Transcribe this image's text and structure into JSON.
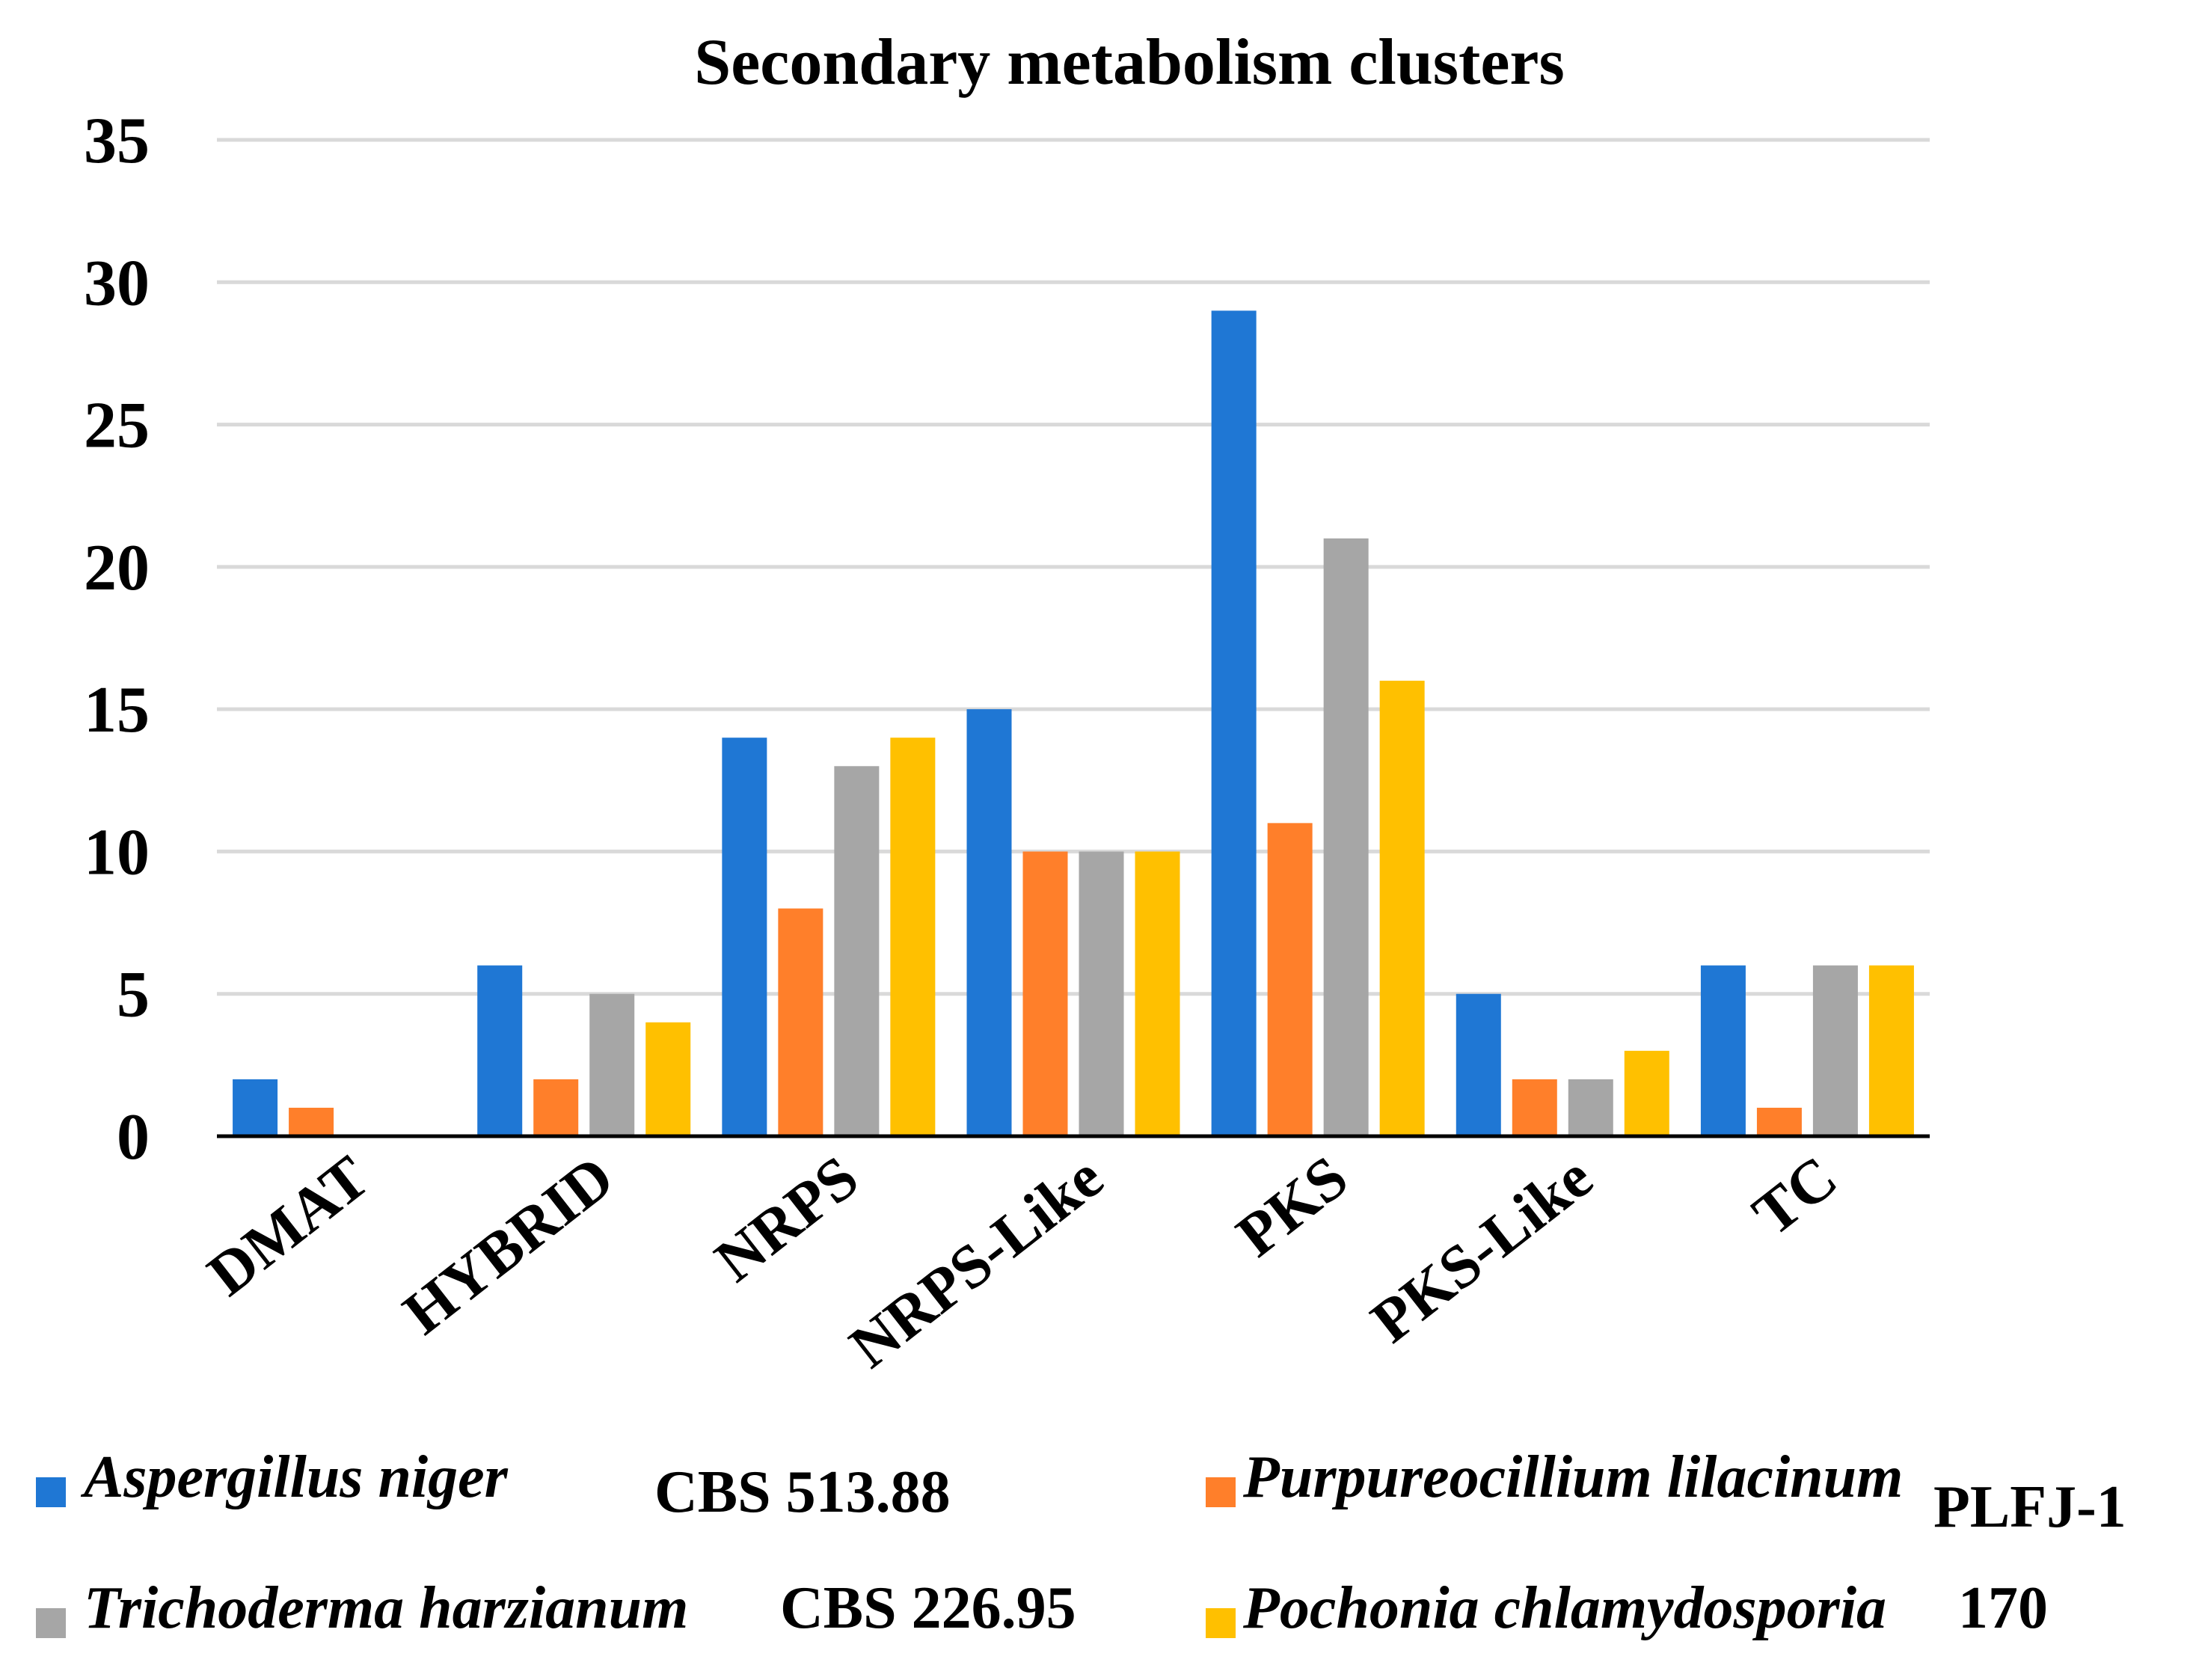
{
  "chart_data": {
    "type": "bar",
    "title": "Secondary metabolism clusters",
    "xlabel": "",
    "ylabel": "",
    "ylim": [
      0,
      35
    ],
    "yticks": [
      0,
      5,
      10,
      15,
      20,
      25,
      30,
      35
    ],
    "grid": true,
    "legend_position": "bottom",
    "categories": [
      "DMAT",
      "HYBRID",
      "NRPS",
      "NRPS-Like",
      "PKS",
      "PKS-Like",
      "TC"
    ],
    "series": [
      {
        "name": "Aspergillus niger",
        "strain": "CBS 513.88",
        "color": "#1f77d4",
        "values": [
          2,
          6,
          14,
          15,
          29,
          5,
          6
        ]
      },
      {
        "name": "Purpureocillium lilacinum",
        "strain": "PLFJ-1",
        "color": "#ff7f2a",
        "values": [
          1,
          2,
          8,
          10,
          11,
          2,
          1
        ]
      },
      {
        "name": "Trichoderma harzianum",
        "strain": "CBS 226.95",
        "color": "#a6a6a6",
        "values": [
          0,
          5,
          13,
          10,
          21,
          2,
          6
        ]
      },
      {
        "name": "Pochonia chlamydosporia",
        "strain": "170",
        "color": "#ffc000",
        "values": [
          0,
          4,
          14,
          10,
          16,
          3,
          6
        ]
      }
    ]
  }
}
